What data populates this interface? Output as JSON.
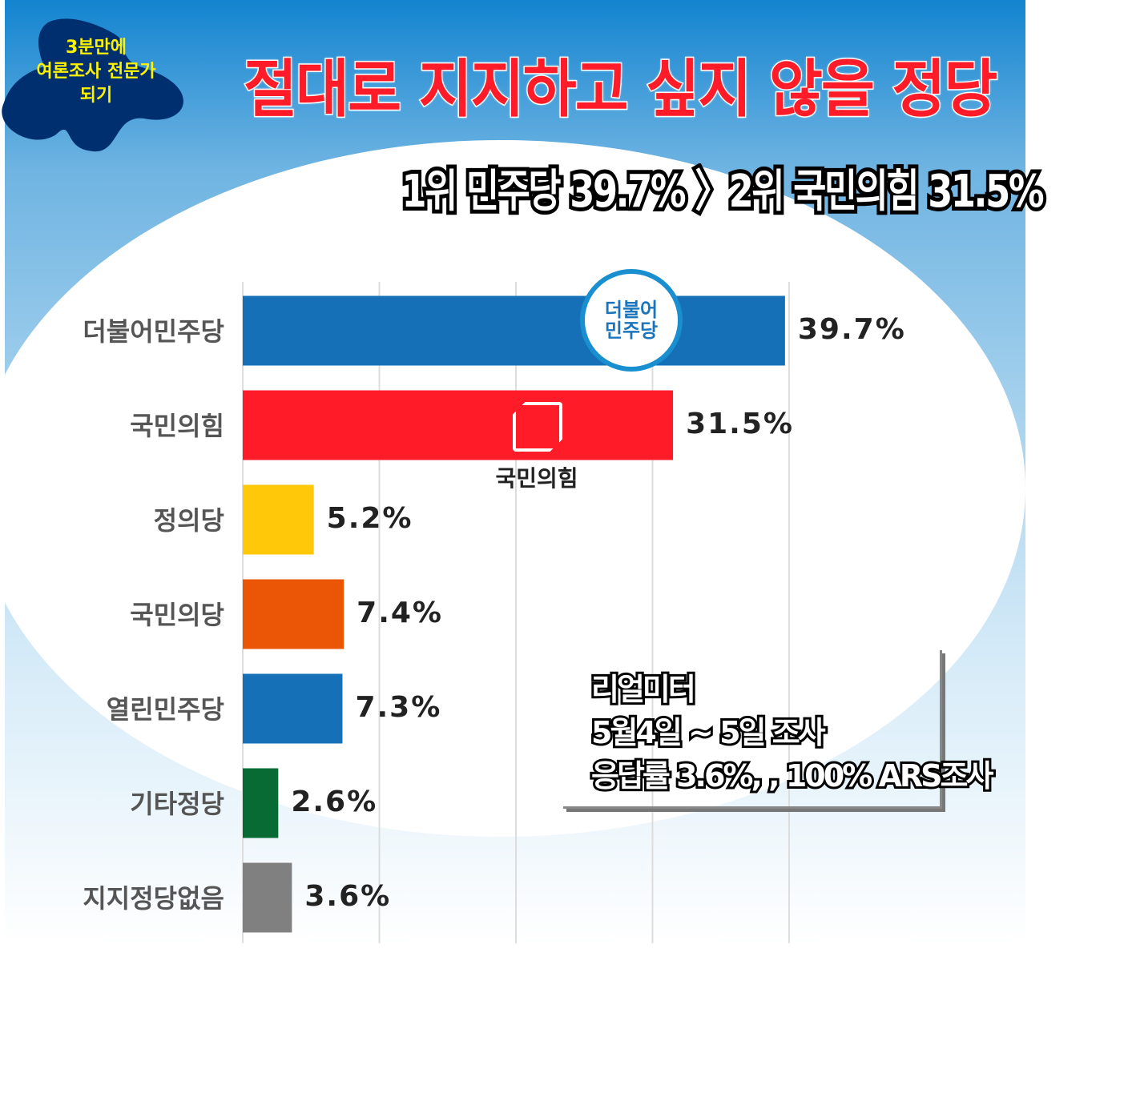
{
  "badge": {
    "lines": [
      "3분만에",
      "여론조사 전문가",
      "되기"
    ]
  },
  "title": "절대로 지지하고 싶지 않을 정당",
  "subtitle": "1위 민주당 39.7% 〉2위 국민의힘 31.5%",
  "logos": {
    "democratic": "더불어\n민주당",
    "ppp": "국민의힘"
  },
  "note": {
    "lines": [
      "리얼미터",
      "5월4일 ~ 5일 조사",
      "응답률 3.6%, , 100% ARS조사"
    ]
  },
  "chart_data": {
    "type": "bar",
    "orientation": "horizontal",
    "categories": [
      "더불어민주당",
      "국민의힘",
      "정의당",
      "국민의당",
      "열린민주당",
      "기타정당",
      "지지정당없음"
    ],
    "values": [
      39.7,
      31.5,
      5.2,
      7.4,
      7.3,
      2.6,
      3.6
    ],
    "data_labels": [
      "39.7%",
      "31.5%",
      "5.2%",
      "7.4%",
      "7.3%",
      "2.6%",
      "3.6%"
    ],
    "colors": [
      "#1570b8",
      "#ff1c28",
      "#ffc90a",
      "#ea5506",
      "#1570b8",
      "#076b33",
      "#808080"
    ],
    "xlim": [
      0,
      40
    ],
    "grid": true
  }
}
